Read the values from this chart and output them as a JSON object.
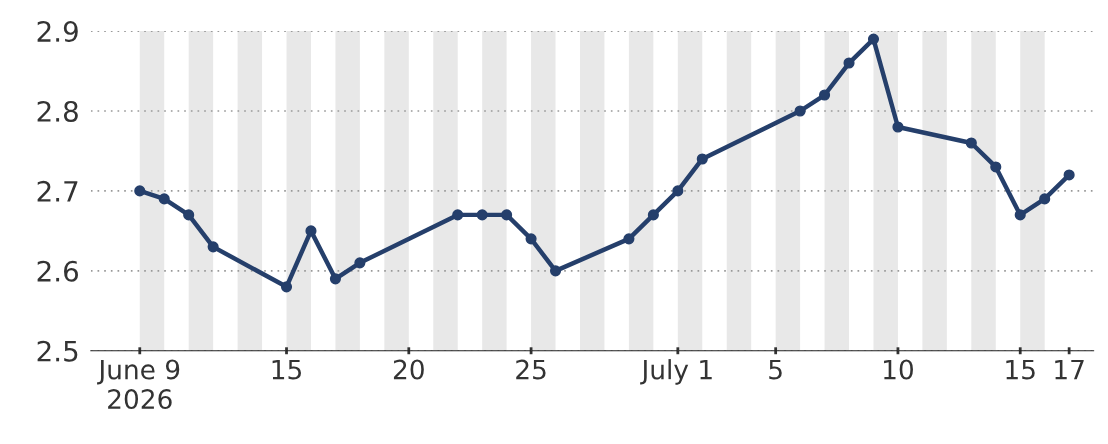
{
  "chart_data": {
    "type": "line",
    "x": [
      "2026-06-09",
      "2026-06-10",
      "2026-06-11",
      "2026-06-12",
      "2026-06-15",
      "2026-06-16",
      "2026-06-17",
      "2026-06-18",
      "2026-06-22",
      "2026-06-23",
      "2026-06-24",
      "2026-06-25",
      "2026-06-26",
      "2026-06-29",
      "2026-06-30",
      "2026-07-01",
      "2026-07-02",
      "2026-07-06",
      "2026-07-07",
      "2026-07-08",
      "2026-07-09",
      "2026-07-10",
      "2026-07-13",
      "2026-07-14",
      "2026-07-15",
      "2026-07-16",
      "2026-07-17"
    ],
    "series": [
      {
        "color": "#253f6b",
        "values": [
          2.7,
          2.69,
          2.67,
          2.63,
          2.58,
          2.65,
          2.59,
          2.61,
          2.67,
          2.67,
          2.67,
          2.64,
          2.6,
          2.64,
          2.67,
          2.7,
          2.74,
          2.8,
          2.82,
          2.86,
          2.89,
          2.78,
          2.76,
          2.73,
          2.67,
          2.69,
          2.72
        ]
      }
    ],
    "xlim": [
      "2026-06-07",
      "2026-07-18"
    ],
    "xticks": [
      {
        "value": "2026-06-09",
        "label": "June 9\n2026"
      },
      {
        "value": "2026-06-15",
        "label": "15"
      },
      {
        "value": "2026-06-20",
        "label": "20"
      },
      {
        "value": "2026-06-25",
        "label": "25"
      },
      {
        "value": "2026-07-01",
        "label": "July 1"
      },
      {
        "value": "2026-07-05",
        "label": "5"
      },
      {
        "value": "2026-07-10",
        "label": "10"
      },
      {
        "value": "2026-07-15",
        "label": "15"
      },
      {
        "value": "2026-07-17",
        "label": "17"
      }
    ],
    "ylim": [
      2.5,
      2.9
    ],
    "yticks": [
      2.5,
      2.6,
      2.7,
      2.8,
      2.9
    ],
    "grid": "y",
    "marker": "circle",
    "line_style": "solid",
    "legend": false,
    "bands": [
      {
        "axis": "x",
        "from": "2026-06-09",
        "to": "2026-06-10",
        "color": "#e8e8e8"
      },
      {
        "axis": "x",
        "from": "2026-06-11",
        "to": "2026-06-12",
        "color": "#e8e8e8"
      },
      {
        "axis": "x",
        "from": "2026-06-13",
        "to": "2026-06-14",
        "color": "#e8e8e8"
      },
      {
        "axis": "x",
        "from": "2026-06-15",
        "to": "2026-06-16",
        "color": "#e8e8e8"
      },
      {
        "axis": "x",
        "from": "2026-06-17",
        "to": "2026-06-18",
        "color": "#e8e8e8"
      },
      {
        "axis": "x",
        "from": "2026-06-19",
        "to": "2026-06-20",
        "color": "#e8e8e8"
      },
      {
        "axis": "x",
        "from": "2026-06-21",
        "to": "2026-06-22",
        "color": "#e8e8e8"
      },
      {
        "axis": "x",
        "from": "2026-06-23",
        "to": "2026-06-24",
        "color": "#e8e8e8"
      },
      {
        "axis": "x",
        "from": "2026-06-25",
        "to": "2026-06-26",
        "color": "#e8e8e8"
      },
      {
        "axis": "x",
        "from": "2026-06-27",
        "to": "2026-06-28",
        "color": "#e8e8e8"
      },
      {
        "axis": "x",
        "from": "2026-06-29",
        "to": "2026-06-30",
        "color": "#e8e8e8"
      },
      {
        "axis": "x",
        "from": "2026-07-01",
        "to": "2026-07-02",
        "color": "#e8e8e8"
      },
      {
        "axis": "x",
        "from": "2026-07-03",
        "to": "2026-07-04",
        "color": "#e8e8e8"
      },
      {
        "axis": "x",
        "from": "2026-07-05",
        "to": "2026-07-06",
        "color": "#e8e8e8"
      },
      {
        "axis": "x",
        "from": "2026-07-07",
        "to": "2026-07-08",
        "color": "#e8e8e8"
      },
      {
        "axis": "x",
        "from": "2026-07-09",
        "to": "2026-07-10",
        "color": "#e8e8e8"
      },
      {
        "axis": "x",
        "from": "2026-07-11",
        "to": "2026-07-12",
        "color": "#e8e8e8"
      },
      {
        "axis": "x",
        "from": "2026-07-13",
        "to": "2026-07-14",
        "color": "#e8e8e8"
      },
      {
        "axis": "x",
        "from": "2026-07-15",
        "to": "2026-07-16",
        "color": "#e8e8e8"
      }
    ]
  }
}
